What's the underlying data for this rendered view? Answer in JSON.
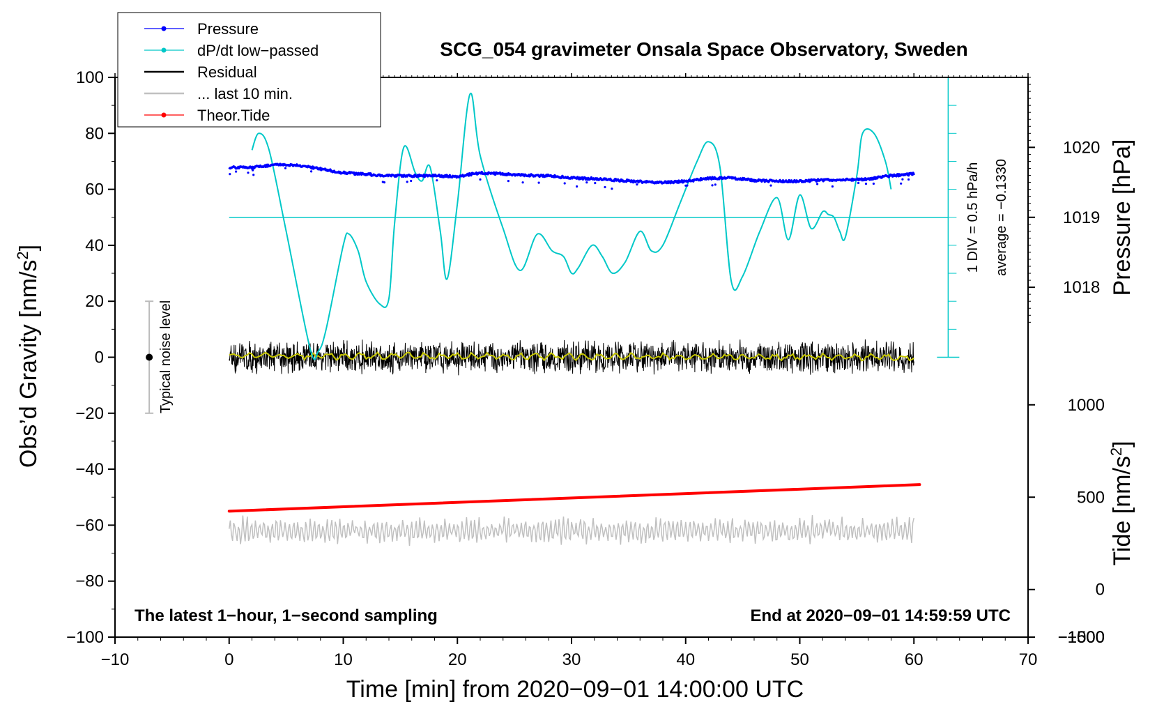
{
  "chart_data": {
    "type": "line",
    "title": "SCG_054 gravimeter Onsala Space Observatory, Sweden",
    "xlabel": "Time [min] from 2020−09−01 14:00:00 UTC",
    "ylabel": "Obs’d Gravity [nm/s²]",
    "y2label_pressure": "Pressure [hPa]",
    "y2label_tide": "Tide [nm/s²]",
    "xlim": [
      -10,
      70
    ],
    "ylim": [
      -100,
      100
    ],
    "x_ticks": [
      -10,
      0,
      10,
      20,
      30,
      40,
      50,
      60,
      70
    ],
    "x_tick_labels": [
      "−10",
      "0",
      "10",
      "20",
      "30",
      "40",
      "50",
      "60",
      "70"
    ],
    "y_ticks": [
      -100,
      -80,
      -60,
      -40,
      -20,
      0,
      20,
      40,
      60,
      80,
      100
    ],
    "y_tick_labels": [
      "−100",
      "−80",
      "−60",
      "−40",
      "−20",
      "0",
      "20",
      "40",
      "60",
      "80",
      "100"
    ],
    "pressure_ticks": [
      {
        "value": 1018,
        "label": "1018",
        "gravity_equiv": 25
      },
      {
        "value": 1019,
        "label": "1019",
        "gravity_equiv": 50
      },
      {
        "value": 1020,
        "label": "1020",
        "gravity_equiv": 75
      }
    ],
    "tide_ticks": [
      {
        "value": 1000,
        "label": "1000",
        "gravity_equiv": -17
      },
      {
        "value": 500,
        "label": "500",
        "gravity_equiv": -50
      },
      {
        "value": 0,
        "label": "0",
        "gravity_equiv": -83
      },
      {
        "value": -500,
        "label": "−500",
        "gravity_equiv": -117
      },
      {
        "value": -1000,
        "label": "−1000",
        "gravity_equiv": -150
      },
      {
        "value": -1500,
        "label": "−1500",
        "gravity_equiv": -183
      }
    ],
    "dpdt_scale_label": "1 DIV = 0.5 hPa/h",
    "dpdt_average_label": "average = −0.1330",
    "noise_level_label": "Typical noise level",
    "noise_level": {
      "x": -7,
      "center": 0,
      "range": [
        -20,
        20
      ]
    },
    "bottom_left_note": "The latest 1−hour, 1−second sampling",
    "bottom_right_note": "End at 2020−09−01 14:59:59 UTC",
    "legend": [
      {
        "label": "Pressure",
        "color": "#0000ff",
        "marker": true
      },
      {
        "label": "dP/dt low−passed",
        "color": "#00c8c8",
        "marker": true
      },
      {
        "label": "Residual",
        "color": "#000000",
        "marker": false
      },
      {
        "label": "... last 10 min.",
        "color": "#c0c0c0",
        "marker": false
      },
      {
        "label": "Theor.Tide",
        "color": "#ff0000",
        "marker": true
      }
    ],
    "series": [
      {
        "name": "Pressure",
        "color": "#0000ff",
        "unit": "gravity-axis equivalent",
        "x": [
          0,
          2,
          4,
          6,
          8,
          10,
          12,
          14,
          16,
          18,
          20,
          22,
          24,
          26,
          28,
          30,
          32,
          34,
          36,
          38,
          40,
          42,
          44,
          46,
          48,
          50,
          52,
          54,
          56,
          58,
          60
        ],
        "values": [
          67.8,
          67.8,
          68.8,
          68.5,
          67.3,
          65.9,
          65.4,
          64.8,
          64.8,
          64.9,
          64.6,
          65.9,
          65.5,
          65.1,
          64.8,
          64.1,
          63.8,
          63.3,
          62.7,
          62.4,
          62.9,
          63.9,
          64.1,
          63.2,
          62.9,
          62.9,
          63.3,
          63.4,
          63.7,
          64.9,
          65.5
        ]
      },
      {
        "name": "dP/dt low-passed",
        "color": "#00c8c8",
        "unit": "gravity-axis equivalent",
        "x": [
          2,
          2.6,
          3.5,
          5,
          7.1,
          7.8,
          8.5,
          10,
          10.5,
          11.3,
          12,
          13.2,
          14,
          14.5,
          15.3,
          16.3,
          16.9,
          17.6,
          18.5,
          19.1,
          20,
          21.1,
          22,
          24,
          25.5,
          27,
          28.3,
          29.3,
          30,
          30.6,
          31.8,
          32.7,
          33.6,
          34.7,
          36,
          37,
          38,
          39.5,
          41,
          42,
          43,
          44,
          45,
          46.5,
          48,
          49,
          50,
          51,
          52,
          52.5,
          53,
          53.5,
          54,
          55,
          55.5,
          56.5,
          57.5,
          58
        ],
        "values": [
          74,
          80,
          74,
          45,
          3,
          2,
          10,
          40,
          44,
          38,
          27,
          19,
          21,
          48,
          75,
          66,
          63,
          68,
          45,
          28,
          55,
          94,
          72,
          46,
          31,
          44,
          38,
          36,
          30,
          32,
          40,
          36,
          30,
          34,
          45,
          38,
          40,
          55,
          70,
          77,
          68,
          27,
          29,
          45,
          57,
          42,
          58,
          46,
          52,
          51,
          50,
          45,
          43,
          65,
          80,
          80,
          70,
          60
        ]
      },
      {
        "name": "Residual",
        "color": "#000000",
        "unit": "nm/s²",
        "x": [
          0,
          60
        ],
        "values": [
          0,
          0
        ],
        "noise_amplitude": 6
      },
      {
        "name": "Residual (smoothed)",
        "color": "#c8c800",
        "unit": "nm/s²",
        "x": [
          0,
          60
        ],
        "values": [
          0.5,
          0
        ]
      },
      {
        "name": "... last 10 min.",
        "color": "#c0c0c0",
        "unit": "offset trace",
        "x": [
          0,
          60
        ],
        "values": [
          -62,
          -62
        ],
        "noise_amplitude": 4
      },
      {
        "name": "Theor.Tide",
        "color": "#ff0000",
        "unit": "nm/s² (tide)",
        "x": [
          0,
          60.5
        ],
        "values": [
          -55,
          -45.5
        ]
      }
    ]
  }
}
